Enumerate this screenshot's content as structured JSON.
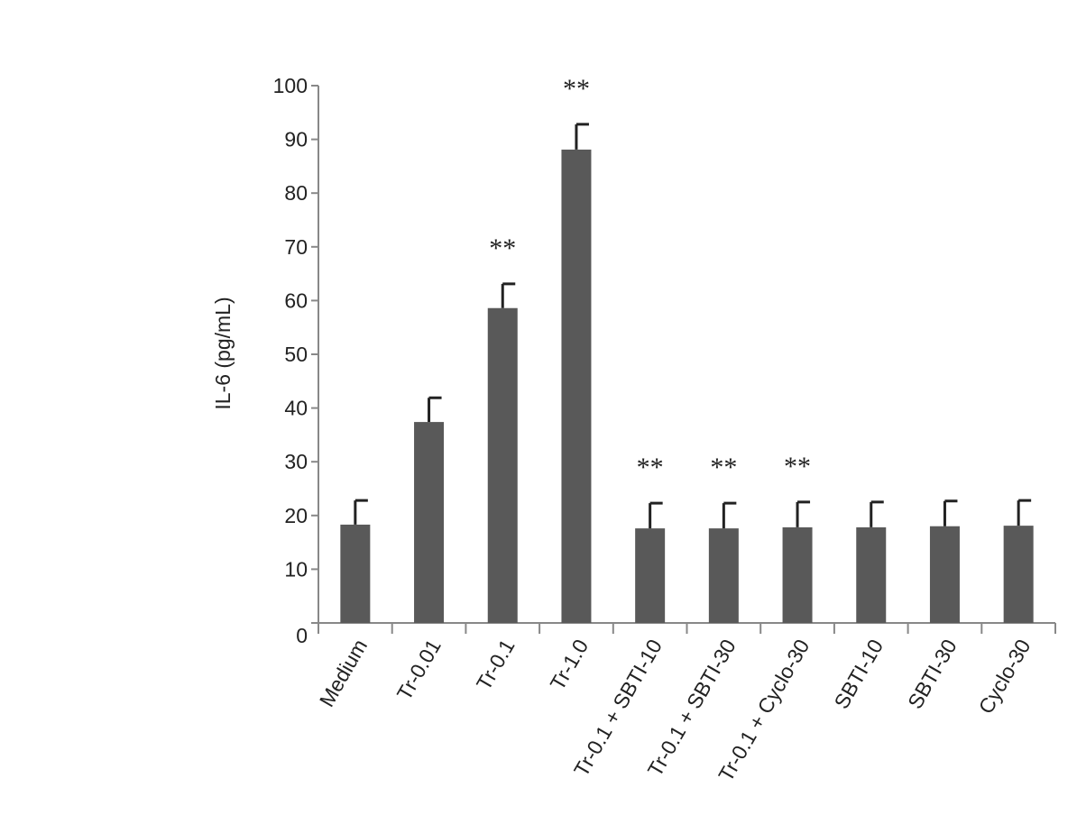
{
  "chart_data": {
    "type": "bar",
    "ylabel": "IL-6 (pg/mL)",
    "categories": [
      "Medium",
      "Tr-0.01",
      "Tr-0.1",
      "Tr-1.0",
      "Tr-0.1 + SBTI-10",
      "Tr-0.1 + SBTI-30",
      "Tr-0.1 + Cyclo-30",
      "SBTI-10",
      "SBTI-30",
      "Cyclo-30"
    ],
    "values": [
      18.3,
      37.4,
      58.6,
      88.1,
      17.6,
      17.6,
      17.8,
      17.8,
      18.0,
      18.1
    ],
    "errors": [
      4.5,
      4.5,
      4.5,
      4.7,
      4.7,
      4.7,
      4.7,
      4.7,
      4.7,
      4.7
    ],
    "annotations": [
      null,
      null,
      "**",
      "**",
      "**",
      "**",
      "**",
      null,
      null,
      null
    ],
    "color": "#595959",
    "ylim": [
      0,
      100
    ],
    "yticks": [
      0,
      10,
      20,
      30,
      40,
      50,
      60,
      70,
      80,
      90,
      100
    ]
  }
}
